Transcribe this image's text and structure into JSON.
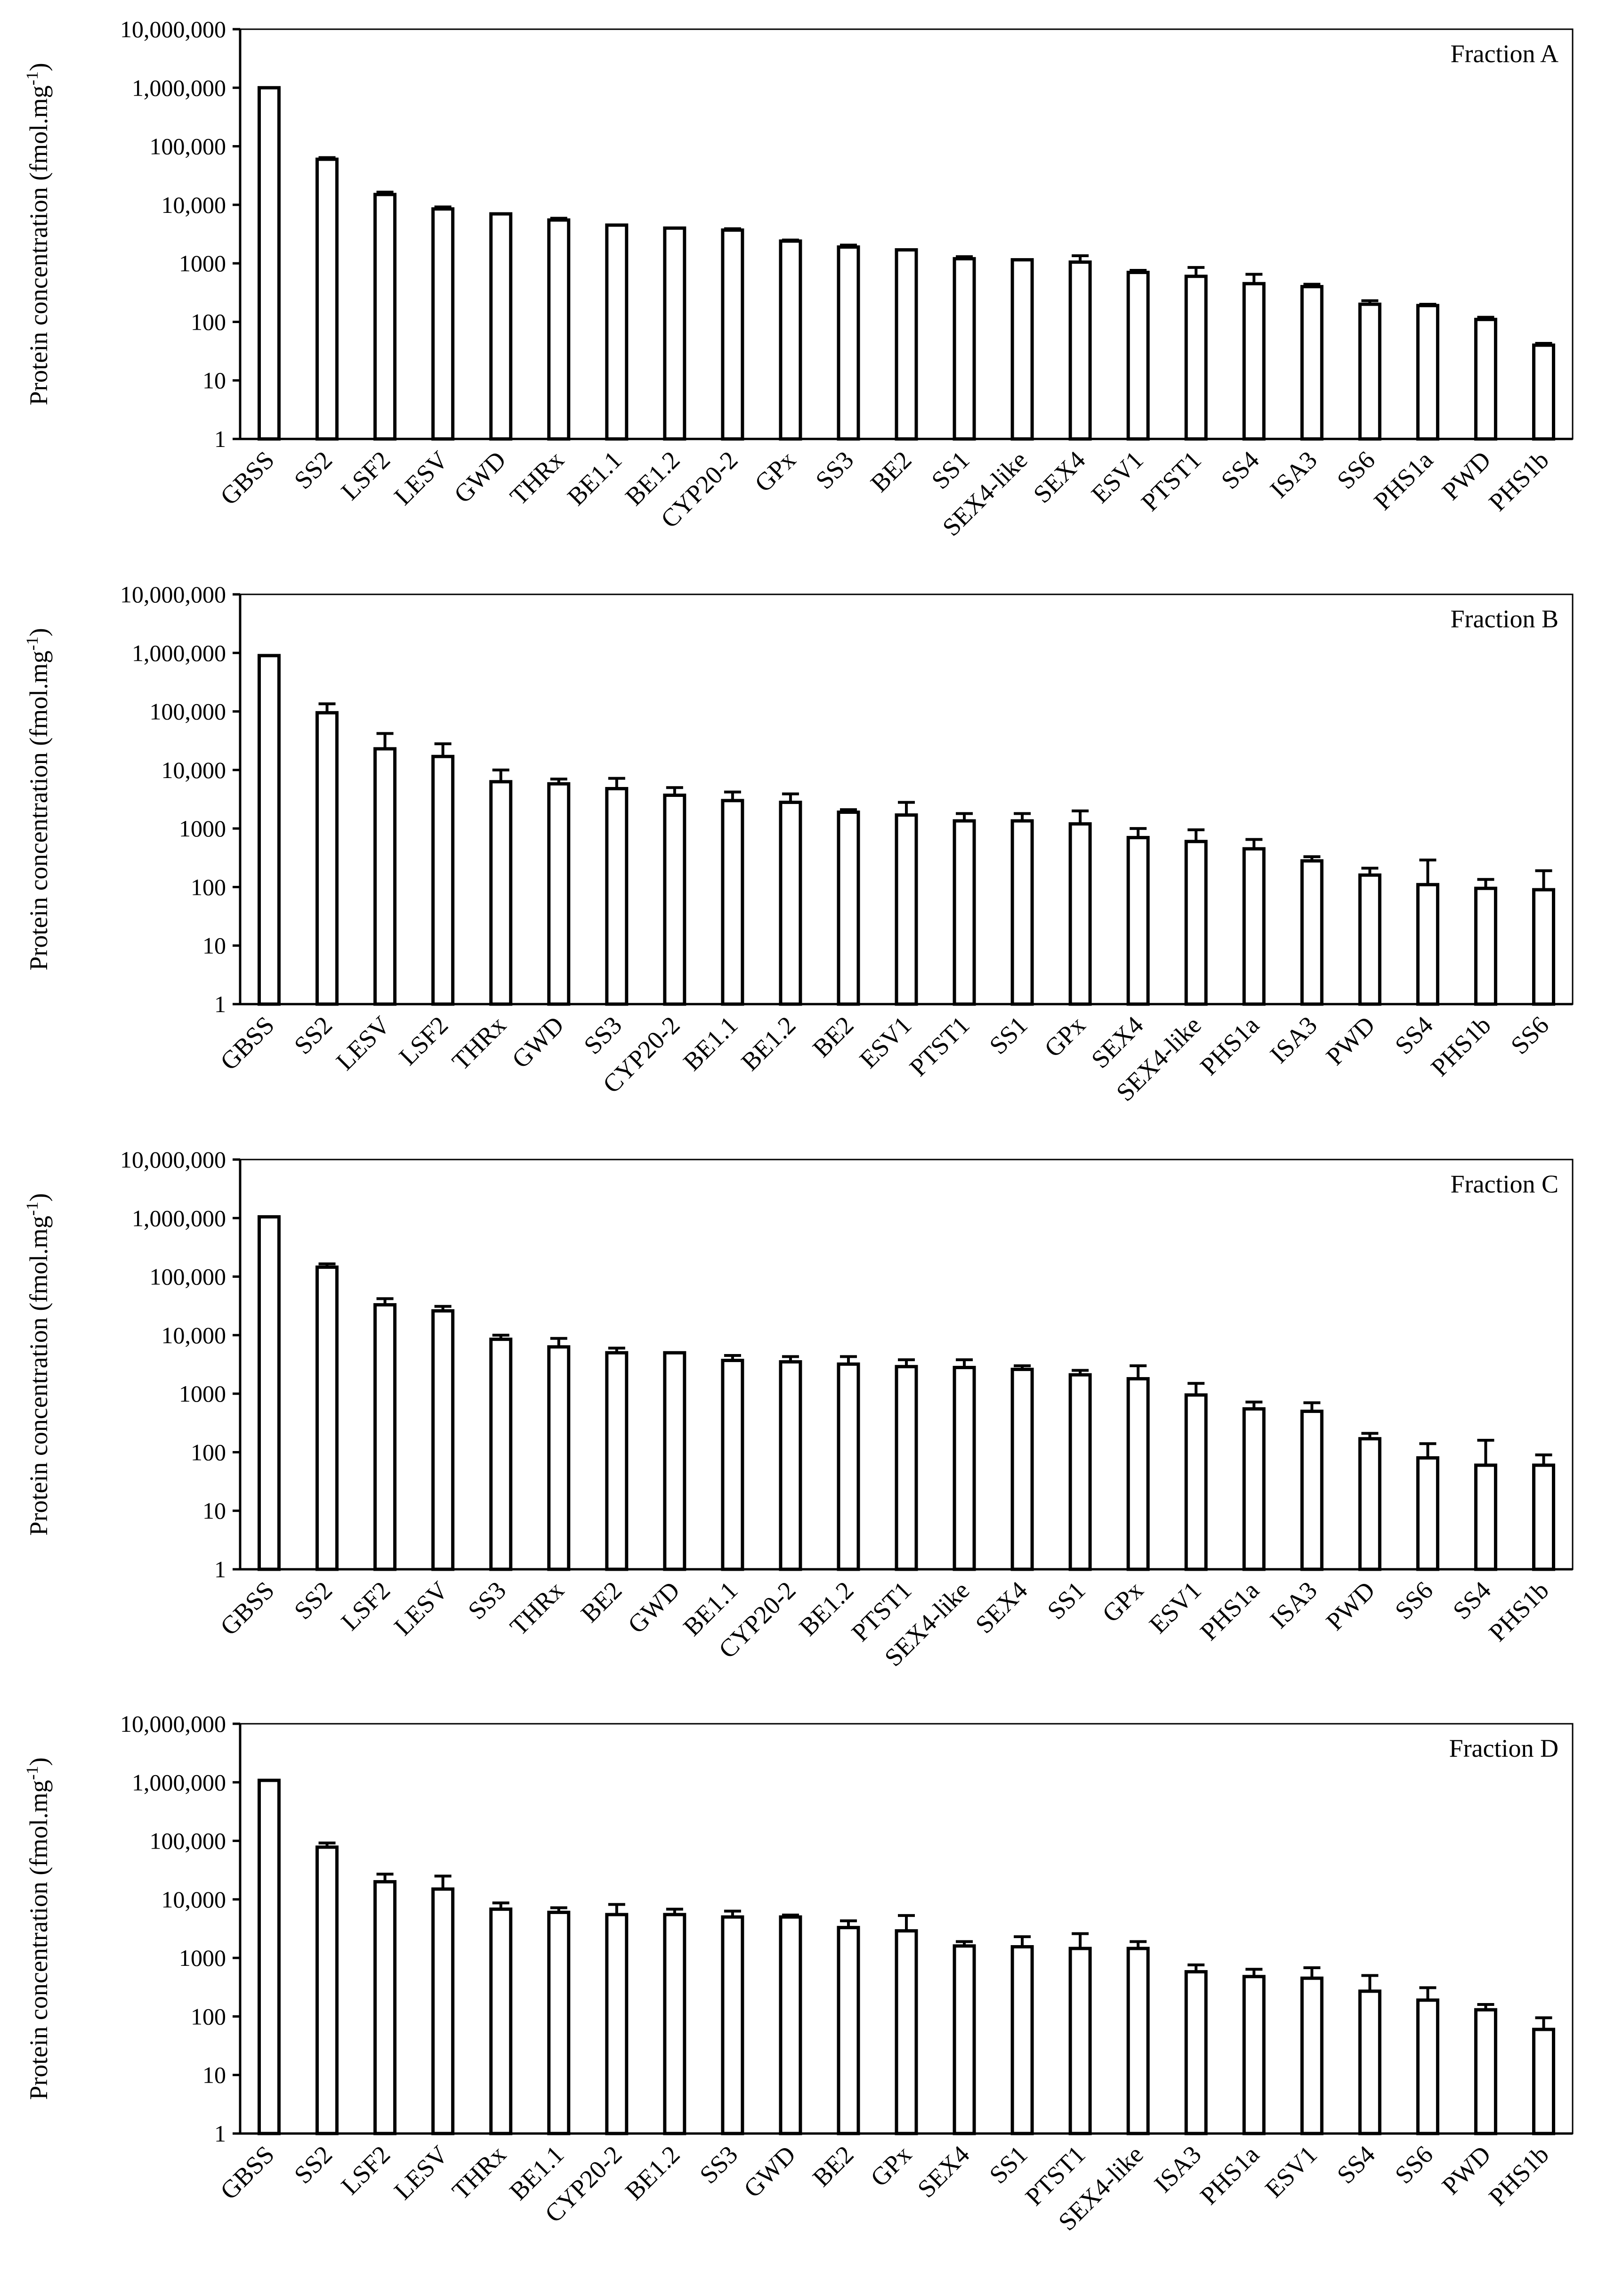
{
  "y_axis_label": "Protein concentration (fmol.mg",
  "y_axis_label_sup": "-1",
  "y_axis_label_end": ")",
  "chart_data": [
    {
      "type": "bar",
      "title": "Fraction A",
      "yscale": "log",
      "ylim": [
        1,
        10000000
      ],
      "yticks": [
        "1",
        "10",
        "100",
        "1000",
        "10,000",
        "100,000",
        "1,000,000",
        "10,000,000"
      ],
      "categories": [
        "GBSS",
        "SS2",
        "LSF2",
        "LESV",
        "GWD",
        "THRx",
        "BE1.1",
        "BE1.2",
        "CYP20-2",
        "GPx",
        "SS3",
        "BE2",
        "SS1",
        "SEX4-like",
        "SEX4",
        "ESV1",
        "PTST1",
        "SS4",
        "ISA3",
        "SS6",
        "PHS1a",
        "PWD",
        "PHS1b"
      ],
      "values": [
        1000000,
        60000,
        15000,
        8500,
        7000,
        5500,
        4500,
        4000,
        3700,
        2400,
        1900,
        1700,
        1200,
        1150,
        1050,
        700,
        600,
        450,
        400,
        200,
        190,
        110,
        40
      ],
      "error_upper": [
        1000000,
        64000,
        16500,
        9200,
        7000,
        5900,
        4500,
        4000,
        3900,
        2500,
        2050,
        1700,
        1300,
        1150,
        1350,
        760,
        850,
        650,
        440,
        230,
        200,
        120,
        43
      ]
    },
    {
      "type": "bar",
      "title": "Fraction B",
      "yscale": "log",
      "ylim": [
        1,
        10000000
      ],
      "yticks": [
        "1",
        "10",
        "100",
        "1000",
        "10,000",
        "100,000",
        "1,000,000",
        "10,000,000"
      ],
      "categories": [
        "GBSS",
        "SS2",
        "LESV",
        "LSF2",
        "THRx",
        "GWD",
        "SS3",
        "CYP20-2",
        "BE1.1",
        "BE1.2",
        "BE2",
        "ESV1",
        "PTST1",
        "SS1",
        "GPx",
        "SEX4",
        "SEX4-like",
        "PHS1a",
        "ISA3",
        "PWD",
        "SS4",
        "PHS1b",
        "SS6"
      ],
      "values": [
        900000,
        95000,
        23000,
        17000,
        6300,
        5800,
        4800,
        3700,
        3000,
        2800,
        1900,
        1700,
        1350,
        1350,
        1200,
        700,
        600,
        450,
        280,
        160,
        110,
        95,
        90
      ],
      "error_upper": [
        900000,
        135000,
        42000,
        28000,
        10000,
        7000,
        7200,
        5000,
        4200,
        3900,
        2100,
        2800,
        1800,
        1800,
        2000,
        1000,
        950,
        650,
        330,
        210,
        290,
        135,
        190
      ]
    },
    {
      "type": "bar",
      "title": "Fraction C",
      "yscale": "log",
      "ylim": [
        1,
        10000000
      ],
      "yticks": [
        "1",
        "10",
        "100",
        "1000",
        "10,000",
        "100,000",
        "1,000,000",
        "10,000,000"
      ],
      "categories": [
        "GBSS",
        "SS2",
        "LSF2",
        "LESV",
        "SS3",
        "THRx",
        "BE2",
        "GWD",
        "BE1.1",
        "CYP20-2",
        "BE1.2",
        "PTST1",
        "SEX4-like",
        "SEX4",
        "SS1",
        "GPx",
        "ESV1",
        "PHS1a",
        "ISA3",
        "PWD",
        "SS6",
        "SS4",
        "PHS1b"
      ],
      "values": [
        1050000,
        145000,
        33000,
        26000,
        8500,
        6300,
        5000,
        5000,
        3700,
        3500,
        3200,
        2900,
        2800,
        2600,
        2100,
        1800,
        950,
        550,
        500,
        170,
        80,
        60,
        60
      ],
      "error_upper": [
        1050000,
        165000,
        42000,
        31000,
        10000,
        8800,
        6000,
        5000,
        4500,
        4300,
        4300,
        3800,
        3800,
        3000,
        2500,
        3000,
        1500,
        720,
        700,
        210,
        140,
        160,
        90
      ]
    },
    {
      "type": "bar",
      "title": "Fraction D",
      "yscale": "log",
      "ylim": [
        1,
        10000000
      ],
      "yticks": [
        "1",
        "10",
        "100",
        "1000",
        "10,000",
        "100,000",
        "1,000,000",
        "10,000,000"
      ],
      "categories": [
        "GBSS",
        "SS2",
        "LSF2",
        "LESV",
        "THRx",
        "BE1.1",
        "CYP20-2",
        "BE1.2",
        "SS3",
        "GWD",
        "BE2",
        "GPx",
        "SEX4",
        "SS1",
        "PTST1",
        "SEX4-like",
        "ISA3",
        "PHS1a",
        "ESV1",
        "SS4",
        "SS6",
        "PWD",
        "PHS1b"
      ],
      "values": [
        1080000,
        78000,
        20000,
        15000,
        6800,
        6000,
        5500,
        5500,
        5000,
        5000,
        3300,
        2900,
        1600,
        1550,
        1450,
        1450,
        580,
        480,
        450,
        270,
        190,
        130,
        60
      ],
      "error_upper": [
        1080000,
        92000,
        27000,
        25000,
        8700,
        7200,
        8200,
        6800,
        6300,
        5400,
        4300,
        5300,
        1900,
        2300,
        2600,
        1900,
        760,
        640,
        680,
        500,
        310,
        160,
        95
      ]
    }
  ]
}
